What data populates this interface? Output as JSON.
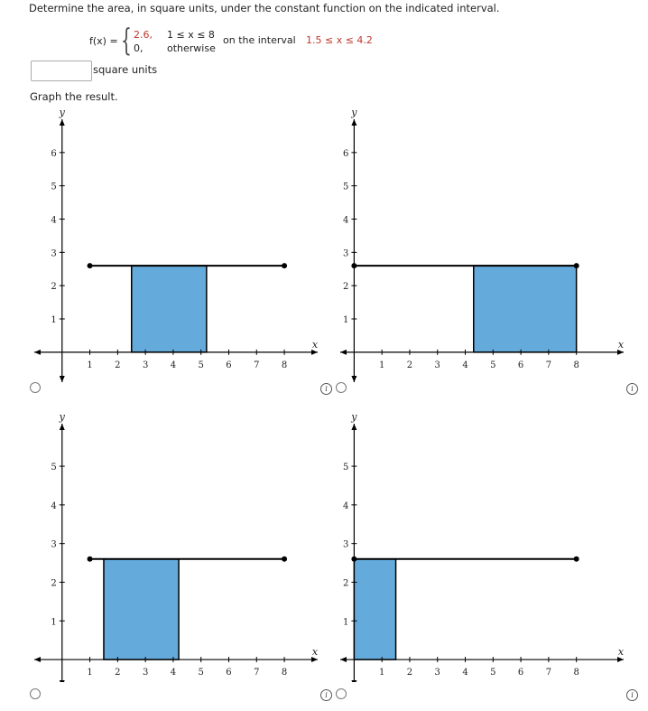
{
  "question": "Determine the area, in square units, under the constant function on the indicated interval.",
  "function": {
    "lhs": "f(x) =",
    "case1_value": "2.6,",
    "case1_condition": "1 ≤ x ≤ 8",
    "case2_value": "0,",
    "case2_condition": "otherwise",
    "interval_prefix": "on the interval",
    "interval": "1.5 ≤ x ≤ 4.2"
  },
  "answer": {
    "value": "",
    "placeholder": "",
    "units_label": "square units"
  },
  "graph_prompt": "Graph the result.",
  "colors": {
    "fill": "#64aadb",
    "red": "#c0392b",
    "line": "#000000"
  },
  "info_icon": "i",
  "options": [
    {
      "x_ticks": [
        "1",
        "2",
        "3",
        "4",
        "5",
        "6",
        "7",
        "8"
      ],
      "y_ticks": [
        "1",
        "2",
        "3",
        "4",
        "5",
        "6"
      ],
      "x_label": "x",
      "y_label": "y",
      "chart_data": {
        "type": "area",
        "function_value": 2.6,
        "domain": [
          1,
          8
        ],
        "shaded": [
          2.5,
          5.2
        ],
        "xlim": [
          -1,
          9.2
        ],
        "ylim": [
          -0.9,
          7
        ]
      }
    },
    {
      "x_ticks": [
        "1",
        "2",
        "3",
        "4",
        "5",
        "6",
        "7",
        "8"
      ],
      "y_ticks": [
        "1",
        "2",
        "3",
        "4",
        "5",
        "6"
      ],
      "x_label": "x",
      "y_label": "y",
      "chart_data": {
        "type": "area",
        "function_value": 2.6,
        "domain": [
          0,
          8
        ],
        "shaded": [
          4.3,
          8
        ],
        "xlim": [
          -0.5,
          9.7
        ],
        "ylim": [
          -0.9,
          7
        ]
      }
    },
    {
      "x_ticks": [
        "1",
        "2",
        "3",
        "4",
        "5",
        "6",
        "7",
        "8"
      ],
      "y_ticks": [
        "1",
        "2",
        "3",
        "4",
        "5"
      ],
      "x_label": "x",
      "y_label": "y",
      "chart_data": {
        "type": "area",
        "function_value": 2.6,
        "domain": [
          1,
          8
        ],
        "shaded": [
          1.5,
          4.2
        ],
        "xlim": [
          -1,
          9.2
        ],
        "ylim": [
          -0.7,
          6.1
        ]
      }
    },
    {
      "x_ticks": [
        "1",
        "2",
        "3",
        "4",
        "5",
        "6",
        "7",
        "8"
      ],
      "y_ticks": [
        "1",
        "2",
        "3",
        "4",
        "5"
      ],
      "x_label": "x",
      "y_label": "y",
      "chart_data": {
        "type": "area",
        "function_value": 2.6,
        "domain": [
          0,
          8
        ],
        "shaded": [
          0,
          1.5
        ],
        "xlim": [
          -0.5,
          9.7
        ],
        "ylim": [
          -0.7,
          6.1
        ]
      }
    }
  ]
}
